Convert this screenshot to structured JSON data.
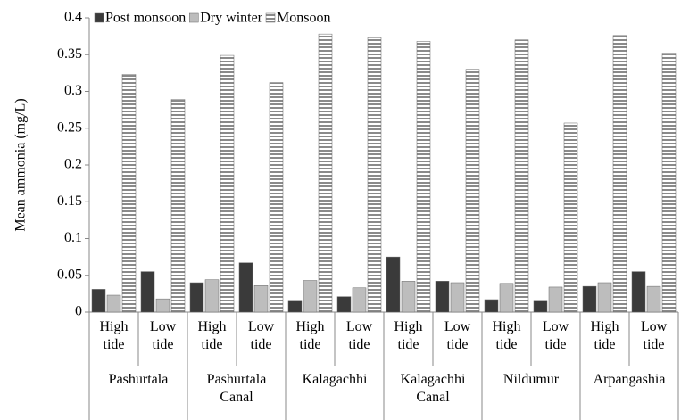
{
  "chart_data": {
    "type": "bar",
    "y_label": "Mean ammonia (mg/L)",
    "groups": [
      "Pashurtala",
      "Pashurtala Canal",
      "Kalagachhi",
      "Kalagachhi Canal",
      "Nildumur",
      "Arpangashia"
    ],
    "categories": [
      "High tide",
      "Low tide",
      "High tide",
      "Low tide",
      "High tide",
      "Low tide",
      "High tide",
      "Low tide",
      "High tide",
      "Low tide",
      "High tide",
      "Low tide"
    ],
    "series": [
      {
        "name": "Post monsoon",
        "color": "#3a3a3a",
        "values": [
          0.031,
          0.055,
          0.04,
          0.067,
          0.016,
          0.021,
          0.075,
          0.042,
          0.017,
          0.016,
          0.035,
          0.055
        ]
      },
      {
        "name": "Dry winter",
        "color": "#bdbdbd",
        "values": [
          0.023,
          0.018,
          0.044,
          0.036,
          0.043,
          0.033,
          0.042,
          0.04,
          0.039,
          0.034,
          0.04,
          0.035
        ]
      },
      {
        "name": "Monsoon",
        "color": "#8a8a8a",
        "hatch": true,
        "values": [
          0.323,
          0.289,
          0.349,
          0.312,
          0.378,
          0.373,
          0.368,
          0.33,
          0.37,
          0.257,
          0.376,
          0.352
        ]
      }
    ],
    "ylim": [
      0,
      0.4
    ],
    "yticks": [
      0,
      0.05,
      0.1,
      0.15,
      0.2,
      0.25,
      0.3,
      0.35,
      0.4
    ],
    "legend": "top-left"
  }
}
